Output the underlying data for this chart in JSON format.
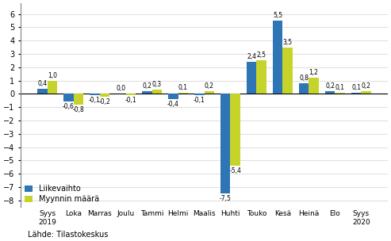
{
  "categories": [
    "Syys\n2019",
    "Loka",
    "Marras",
    "Joulu",
    "Tammi",
    "Helmi",
    "Maalis",
    "Huhti",
    "Touko",
    "Kesä",
    "Heinä",
    "Elo",
    "Syys\n2020"
  ],
  "liikevaihto": [
    0.4,
    -0.6,
    -0.1,
    0.0,
    0.2,
    -0.4,
    -0.1,
    -7.5,
    2.4,
    5.5,
    0.8,
    0.2,
    0.1
  ],
  "myynninmaara": [
    1.0,
    -0.8,
    -0.2,
    -0.1,
    0.3,
    0.1,
    0.2,
    -5.4,
    2.5,
    3.5,
    1.2,
    0.1,
    0.2
  ],
  "color_liikevaihto": "#2E75B6",
  "color_myynninmaara": "#C5D32A",
  "ylim": [
    -8.5,
    6.8
  ],
  "yticks": [
    -8,
    -7,
    -6,
    -5,
    -4,
    -3,
    -2,
    -1,
    0,
    1,
    2,
    3,
    4,
    5,
    6
  ],
  "legend_liikevaihto": "Liikevaihto",
  "legend_myynninmaara": "Myynnin määrä",
  "source_text": "Lähde: Tilastokeskus",
  "bar_width": 0.38
}
